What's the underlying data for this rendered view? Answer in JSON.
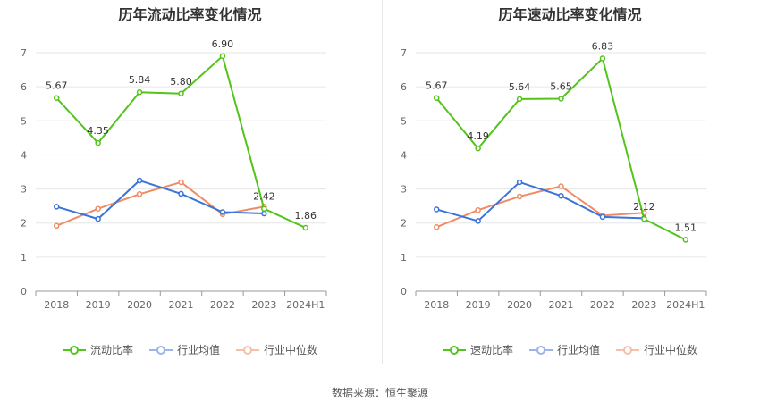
{
  "source_text": "数据来源：恒生聚源",
  "legend_colors": {
    "main": "#52c41a",
    "avg": "#3a73d9",
    "median": "#f08c64"
  },
  "chart_data": [
    {
      "type": "line",
      "title": "历年流动比率变化情况",
      "categories": [
        "2018",
        "2019",
        "2020",
        "2021",
        "2022",
        "2023",
        "2024H1"
      ],
      "ylim": [
        0,
        7
      ],
      "yticks": [
        "0",
        "1",
        "2",
        "3",
        "4",
        "5",
        "6",
        "7"
      ],
      "grid": true,
      "legend_position": "bottom",
      "series": [
        {
          "name": "流动比率",
          "color": "#52c41a",
          "values": [
            5.67,
            4.35,
            5.84,
            5.8,
            6.9,
            2.42,
            1.86
          ],
          "labels": [
            "5.67",
            "4.35",
            "5.84",
            "5.80",
            "6.90",
            "2.42",
            "1.86"
          ]
        },
        {
          "name": "行业均值",
          "color": "#3a73d9",
          "values": [
            2.48,
            2.12,
            3.25,
            2.86,
            2.32,
            2.28,
            null
          ]
        },
        {
          "name": "行业中位数",
          "color": "#f08c64",
          "values": [
            1.92,
            2.42,
            2.85,
            3.2,
            2.26,
            2.48,
            null
          ]
        }
      ]
    },
    {
      "type": "line",
      "title": "历年速动比率变化情况",
      "categories": [
        "2018",
        "2019",
        "2020",
        "2021",
        "2022",
        "2023",
        "2024H1"
      ],
      "ylim": [
        0,
        7
      ],
      "yticks": [
        "0",
        "1",
        "2",
        "3",
        "4",
        "5",
        "6",
        "7"
      ],
      "grid": true,
      "legend_position": "bottom",
      "series": [
        {
          "name": "速动比率",
          "color": "#52c41a",
          "values": [
            5.67,
            4.19,
            5.64,
            5.65,
            6.83,
            2.12,
            1.51
          ],
          "labels": [
            "5.67",
            "4.19",
            "5.64",
            "5.65",
            "6.83",
            "2.12",
            "1.51"
          ]
        },
        {
          "name": "行业均值",
          "color": "#3a73d9",
          "values": [
            2.4,
            2.06,
            3.2,
            2.8,
            2.18,
            2.14,
            null
          ]
        },
        {
          "name": "行业中位数",
          "color": "#f08c64",
          "values": [
            1.88,
            2.38,
            2.78,
            3.08,
            2.22,
            2.3,
            null
          ]
        }
      ]
    }
  ]
}
